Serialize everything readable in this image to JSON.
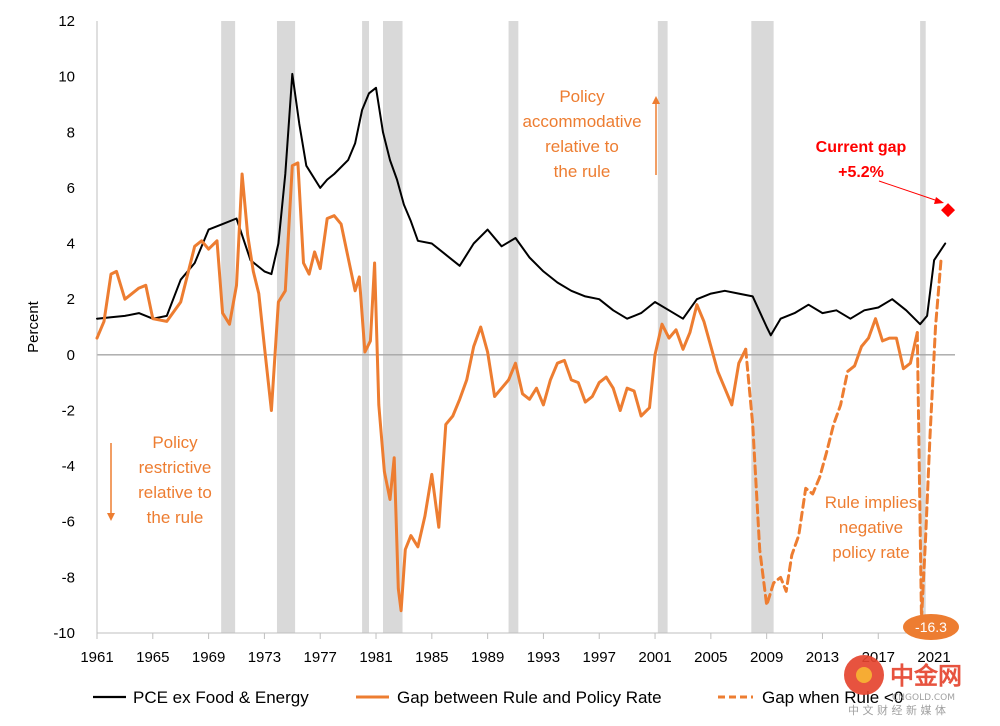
{
  "chart_data": {
    "type": "line",
    "ylabel": "Percent",
    "xlim": [
      1961,
      2022.5
    ],
    "ylim": [
      -10,
      12
    ],
    "yticks": [
      -10,
      -8,
      -6,
      -4,
      -2,
      0,
      2,
      4,
      6,
      8,
      10,
      12
    ],
    "ytick_labels": [
      "-10",
      "-8",
      "-6",
      "-4",
      "-2",
      "0",
      "2",
      "4",
      "6",
      "8",
      "10",
      "12"
    ],
    "xticks": [
      1961,
      1965,
      1969,
      1973,
      1977,
      1981,
      1985,
      1989,
      1993,
      1997,
      2001,
      2005,
      2009,
      2013,
      2017,
      2021
    ],
    "xtick_labels": [
      "1961",
      "1965",
      "1969",
      "1973",
      "1977",
      "1981",
      "1985",
      "1989",
      "1993",
      "1997",
      "2001",
      "2005",
      "2009",
      "2013",
      "2017",
      "2021"
    ],
    "recessions": [
      [
        1969.9,
        1970.9
      ],
      [
        1973.9,
        1975.2
      ],
      [
        1980.0,
        1980.5
      ],
      [
        1981.5,
        1982.9
      ],
      [
        1990.5,
        1991.2
      ],
      [
        2001.2,
        2001.9
      ],
      [
        2007.9,
        2009.5
      ],
      [
        2020.0,
        2020.4
      ]
    ],
    "colors": {
      "pce": "#000000",
      "gap": "#ED7D31",
      "recession": "#D9D9D9",
      "current": "#FF0000"
    },
    "series": [
      {
        "name": "PCE ex Food & Energy",
        "style": "solid",
        "points": [
          [
            1961,
            1.3
          ],
          [
            1962,
            1.35
          ],
          [
            1963,
            1.4
          ],
          [
            1964,
            1.5
          ],
          [
            1965,
            1.3
          ],
          [
            1966,
            1.4
          ],
          [
            1967,
            2.7
          ],
          [
            1968,
            3.3
          ],
          [
            1969,
            4.5
          ],
          [
            1970,
            4.7
          ],
          [
            1971,
            4.9
          ],
          [
            1972,
            3.4
          ],
          [
            1973,
            3.0
          ],
          [
            1973.5,
            2.9
          ],
          [
            1974,
            4.0
          ],
          [
            1974.5,
            6.5
          ],
          [
            1975,
            10.1
          ],
          [
            1975.5,
            8.3
          ],
          [
            1976,
            6.8
          ],
          [
            1977,
            6.0
          ],
          [
            1977.5,
            6.3
          ],
          [
            1978,
            6.5
          ],
          [
            1979,
            7.0
          ],
          [
            1979.5,
            7.6
          ],
          [
            1980,
            8.8
          ],
          [
            1980.5,
            9.4
          ],
          [
            1981,
            9.6
          ],
          [
            1981.5,
            8.0
          ],
          [
            1982,
            7.0
          ],
          [
            1982.5,
            6.3
          ],
          [
            1983,
            5.4
          ],
          [
            1983.5,
            4.8
          ],
          [
            1984,
            4.1
          ],
          [
            1985,
            4.0
          ],
          [
            1986,
            3.6
          ],
          [
            1987,
            3.2
          ],
          [
            1988,
            4.0
          ],
          [
            1989,
            4.5
          ],
          [
            1990,
            3.9
          ],
          [
            1991,
            4.2
          ],
          [
            1992,
            3.5
          ],
          [
            1993,
            3.0
          ],
          [
            1994,
            2.6
          ],
          [
            1995,
            2.3
          ],
          [
            1996,
            2.1
          ],
          [
            1997,
            2.0
          ],
          [
            1998,
            1.6
          ],
          [
            1999,
            1.3
          ],
          [
            2000,
            1.5
          ],
          [
            2001,
            1.9
          ],
          [
            2002,
            1.6
          ],
          [
            2003,
            1.3
          ],
          [
            2004,
            2.0
          ],
          [
            2005,
            2.2
          ],
          [
            2006,
            2.3
          ],
          [
            2007,
            2.2
          ],
          [
            2008,
            2.1
          ],
          [
            2009,
            1.0
          ],
          [
            2009.3,
            0.7
          ],
          [
            2010,
            1.3
          ],
          [
            2011,
            1.5
          ],
          [
            2012,
            1.8
          ],
          [
            2013,
            1.5
          ],
          [
            2014,
            1.6
          ],
          [
            2015,
            1.3
          ],
          [
            2016,
            1.6
          ],
          [
            2017,
            1.7
          ],
          [
            2018,
            2.0
          ],
          [
            2019,
            1.6
          ],
          [
            2020,
            1.1
          ],
          [
            2020.5,
            1.4
          ],
          [
            2021,
            3.4
          ],
          [
            2021.8,
            4.0
          ]
        ]
      },
      {
        "name": "Gap between Rule and Policy Rate",
        "style": "solid",
        "points": [
          [
            1961,
            0.6
          ],
          [
            1961.5,
            1.2
          ],
          [
            1962,
            2.9
          ],
          [
            1962.4,
            3.0
          ],
          [
            1963,
            2.0
          ],
          [
            1964,
            2.4
          ],
          [
            1964.5,
            2.5
          ],
          [
            1965,
            1.3
          ],
          [
            1966,
            1.2
          ],
          [
            1967,
            1.9
          ],
          [
            1968,
            3.9
          ],
          [
            1968.5,
            4.1
          ],
          [
            1969,
            3.8
          ],
          [
            1969.6,
            4.1
          ],
          [
            1970,
            1.5
          ],
          [
            1970.5,
            1.1
          ],
          [
            1971,
            2.5
          ],
          [
            1971.4,
            6.5
          ],
          [
            1971.8,
            4.3
          ],
          [
            1972.2,
            3.0
          ],
          [
            1972.6,
            2.2
          ],
          [
            1973,
            0.3
          ],
          [
            1973.5,
            -2.0
          ],
          [
            1974,
            1.9
          ],
          [
            1974.5,
            2.3
          ],
          [
            1975,
            6.8
          ],
          [
            1975.4,
            6.9
          ],
          [
            1975.8,
            3.3
          ],
          [
            1976.2,
            2.9
          ],
          [
            1976.6,
            3.7
          ],
          [
            1977,
            3.1
          ],
          [
            1977.5,
            4.9
          ],
          [
            1978,
            5.0
          ],
          [
            1978.5,
            4.7
          ],
          [
            1979,
            3.5
          ],
          [
            1979.5,
            2.3
          ],
          [
            1979.8,
            2.8
          ],
          [
            1980.2,
            0.1
          ],
          [
            1980.6,
            0.5
          ],
          [
            1980.9,
            3.3
          ],
          [
            1981.2,
            -1.8
          ],
          [
            1981.6,
            -4.2
          ],
          [
            1982,
            -5.2
          ],
          [
            1982.3,
            -3.7
          ],
          [
            1982.6,
            -8.4
          ],
          [
            1982.8,
            -9.2
          ],
          [
            1983.1,
            -7.0
          ],
          [
            1983.5,
            -6.5
          ],
          [
            1984,
            -6.9
          ],
          [
            1984.5,
            -5.8
          ],
          [
            1985,
            -4.3
          ],
          [
            1985.5,
            -6.2
          ],
          [
            1986,
            -2.5
          ],
          [
            1986.5,
            -2.2
          ],
          [
            1987,
            -1.6
          ],
          [
            1987.5,
            -0.9
          ],
          [
            1988,
            0.3
          ],
          [
            1988.5,
            1.0
          ],
          [
            1989,
            0.1
          ],
          [
            1989.5,
            -1.5
          ],
          [
            1990,
            -1.2
          ],
          [
            1990.5,
            -0.9
          ],
          [
            1991,
            -0.3
          ],
          [
            1991.5,
            -1.4
          ],
          [
            1992,
            -1.6
          ],
          [
            1992.5,
            -1.2
          ],
          [
            1993,
            -1.8
          ],
          [
            1993.5,
            -0.9
          ],
          [
            1994,
            -0.3
          ],
          [
            1994.5,
            -0.2
          ],
          [
            1995,
            -0.9
          ],
          [
            1995.5,
            -1.0
          ],
          [
            1996,
            -1.7
          ],
          [
            1996.5,
            -1.5
          ],
          [
            1997,
            -1.0
          ],
          [
            1997.5,
            -0.8
          ],
          [
            1998,
            -1.2
          ],
          [
            1998.5,
            -2.0
          ],
          [
            1999,
            -1.2
          ],
          [
            1999.5,
            -1.3
          ],
          [
            2000,
            -2.2
          ],
          [
            2000.6,
            -1.9
          ],
          [
            2001,
            0.0
          ],
          [
            2001.5,
            1.1
          ],
          [
            2002,
            0.6
          ],
          [
            2002.5,
            0.9
          ],
          [
            2003,
            0.2
          ],
          [
            2003.5,
            0.8
          ],
          [
            2004,
            1.8
          ],
          [
            2004.5,
            1.2
          ],
          [
            2005,
            0.3
          ],
          [
            2005.5,
            -0.6
          ],
          [
            2006,
            -1.2
          ],
          [
            2006.5,
            -1.8
          ],
          [
            2007,
            -0.3
          ],
          [
            2007.5,
            0.2
          ]
        ]
      },
      {
        "name": "Gap when Rule <0",
        "style": "dashed",
        "points": [
          [
            2007.5,
            0.2
          ],
          [
            2008,
            -2.5
          ],
          [
            2008.5,
            -7.0
          ],
          [
            2009,
            -9.0
          ],
          [
            2009.5,
            -8.2
          ],
          [
            2010,
            -8.0
          ],
          [
            2010.4,
            -8.5
          ],
          [
            2010.8,
            -7.2
          ],
          [
            2011.3,
            -6.5
          ],
          [
            2011.8,
            -4.8
          ],
          [
            2012.3,
            -5.0
          ],
          [
            2012.8,
            -4.4
          ],
          [
            2013.3,
            -3.5
          ],
          [
            2013.8,
            -2.5
          ],
          [
            2014.3,
            -1.8
          ],
          [
            2014.8,
            -0.6
          ],
          [
            2015.3,
            -0.4
          ]
        ]
      },
      {
        "name": "Gap between Rule and Policy Rate (recent)",
        "style": "solid",
        "points": [
          [
            2015.3,
            -0.4
          ],
          [
            2015.8,
            0.3
          ],
          [
            2016.3,
            0.6
          ],
          [
            2016.8,
            1.3
          ],
          [
            2017.3,
            0.5
          ],
          [
            2017.8,
            0.6
          ],
          [
            2018.3,
            0.6
          ],
          [
            2018.8,
            -0.5
          ],
          [
            2019.3,
            -0.3
          ],
          [
            2019.8,
            0.8
          ]
        ]
      },
      {
        "name": "Gap when Rule <0 (2020)",
        "style": "dashed",
        "points": [
          [
            2019.8,
            0.8
          ],
          [
            2020.1,
            -9.5
          ],
          [
            2020.4,
            -6.5
          ],
          [
            2020.7,
            -3.0
          ],
          [
            2021.1,
            1.0
          ],
          [
            2021.5,
            3.4
          ]
        ]
      }
    ],
    "current_gap": {
      "year": 2022.0,
      "value": 5.2
    },
    "annotations": {
      "policy_up": [
        "Policy",
        "accommodative",
        "relative to",
        "the rule"
      ],
      "policy_down": [
        "Policy",
        "restrictive",
        "relative to",
        "the rule"
      ],
      "current_gap": [
        "Current gap",
        "+5.2%"
      ],
      "rule_negative": [
        "Rule implies",
        "negative",
        "policy rate"
      ],
      "min_badge": "-16.3"
    },
    "legend": [
      "PCE ex Food & Energy",
      "Gap between Rule and Policy Rate",
      "Gap when Rule <0"
    ]
  },
  "watermark": {
    "name": "中金网",
    "url": "CNGOLD.COM",
    "tagline": "中 文 财 经 新 媒 体"
  }
}
